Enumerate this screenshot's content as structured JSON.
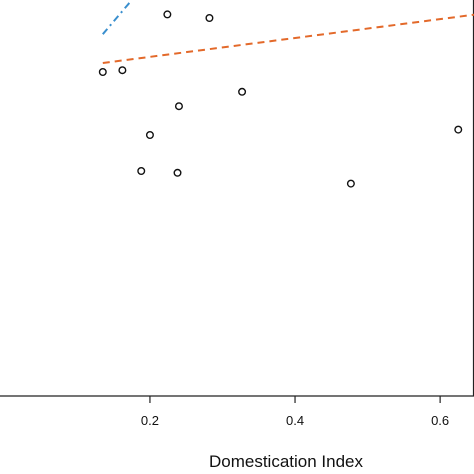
{
  "chart_data": {
    "type": "scatter",
    "title": "",
    "xlabel": "Domestication Index",
    "ylabel": "",
    "xlim": [
      -0.0067,
      0.6467
    ],
    "ylim": [
      -100,
      120
    ],
    "grid": false,
    "x_ticks": [
      {
        "value": 0.2,
        "label": "0.2"
      },
      {
        "value": 0.4,
        "label": "0.4"
      },
      {
        "value": 0.6,
        "label": "0.6"
      }
    ],
    "points": [
      {
        "x": 0.135,
        "y": 80
      },
      {
        "x": 0.162,
        "y": 81
      },
      {
        "x": 0.224,
        "y": 112
      },
      {
        "x": 0.282,
        "y": 110
      },
      {
        "x": 0.24,
        "y": 61
      },
      {
        "x": 0.327,
        "y": 69
      },
      {
        "x": 0.2,
        "y": 45
      },
      {
        "x": 0.188,
        "y": 25
      },
      {
        "x": 0.238,
        "y": 24
      },
      {
        "x": 0.477,
        "y": 18
      },
      {
        "x": 0.625,
        "y": 48
      }
    ],
    "fit_lines": [
      {
        "x": [
          0.135,
          0.65
        ],
        "y": [
          85,
          112
        ],
        "color": "#e3692a",
        "dash": "dashed"
      },
      {
        "x": [
          0.135,
          0.175
        ],
        "y": [
          101,
          120
        ],
        "color": "#3a8fce",
        "dash": "dot-dash"
      }
    ]
  }
}
